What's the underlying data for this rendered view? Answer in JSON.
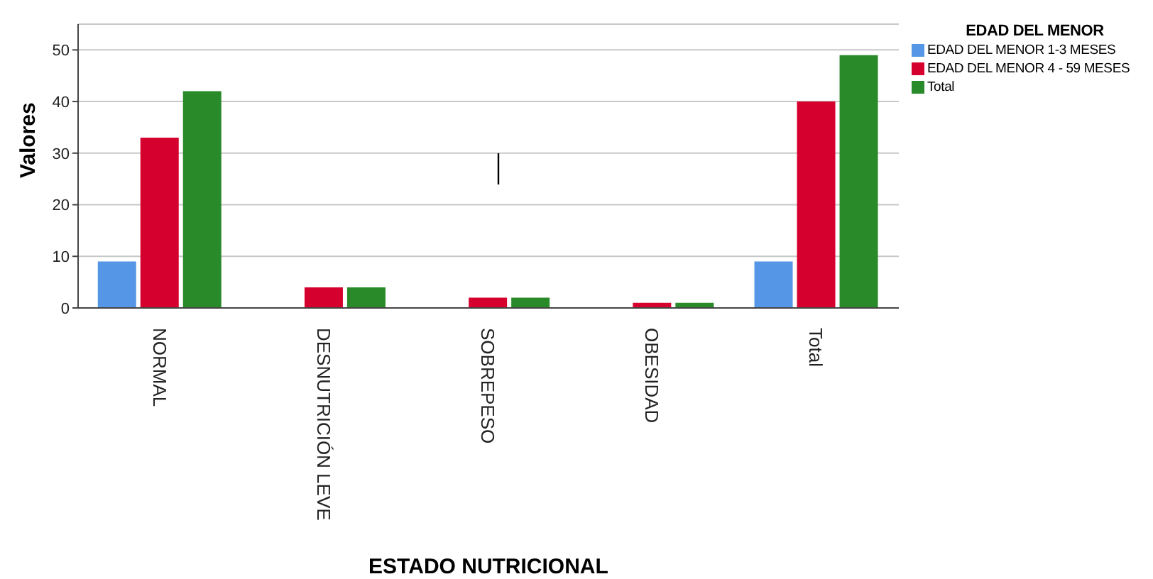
{
  "chart_data": {
    "type": "bar",
    "xlabel": "ESTADO NUTRICIONAL",
    "ylabel": "Valores",
    "legend_title": "EDAD DEL MENOR",
    "categories": [
      "NORMAL",
      "DESNUTRICIÓN LEVE",
      "SOBREPESO",
      "OBESIDAD",
      "Total"
    ],
    "series": [
      {
        "name": "EDAD DEL MENOR 1-3 MESES",
        "color": "#5596e6",
        "values": [
          9,
          null,
          null,
          null,
          9
        ]
      },
      {
        "name": "EDAD DEL MENOR 4 - 59 MESES",
        "color": "#d6002f",
        "values": [
          33,
          4,
          2,
          1,
          40
        ]
      },
      {
        "name": "Total",
        "color": "#298a29",
        "values": [
          42,
          4,
          2,
          1,
          49
        ]
      }
    ],
    "ylim": [
      0,
      55
    ],
    "yticks": [
      0,
      10,
      20,
      30,
      40,
      50
    ],
    "grid": "y",
    "legend": "top right"
  }
}
